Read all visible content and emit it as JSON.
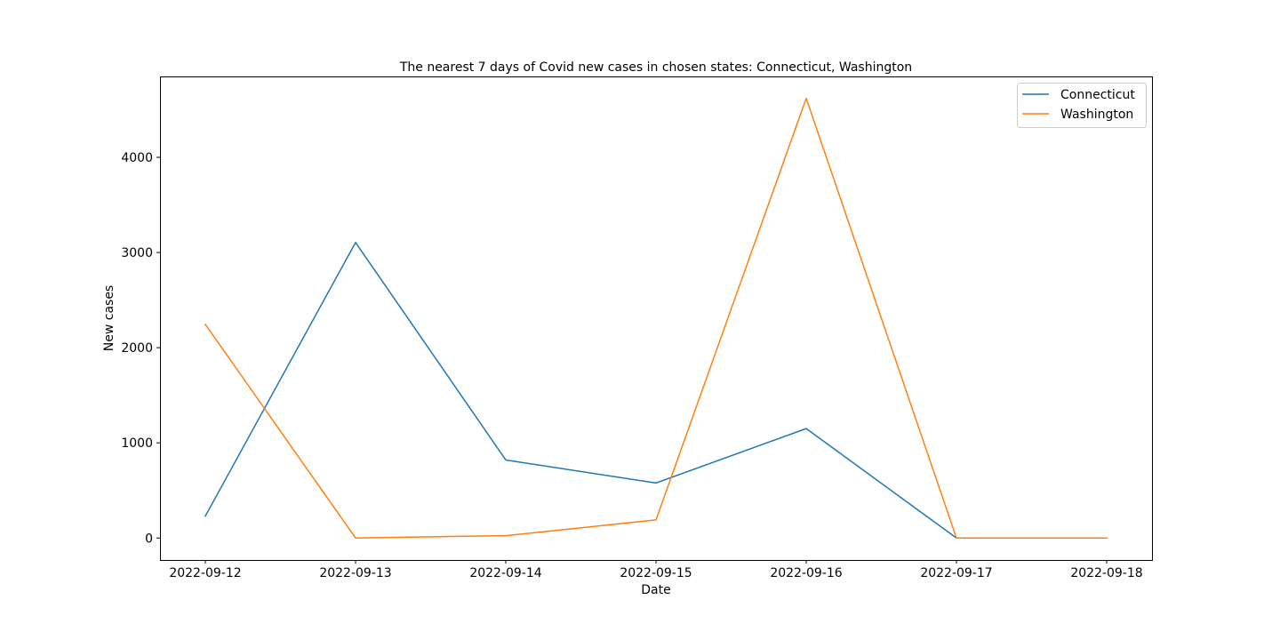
{
  "chart_data": {
    "type": "line",
    "title": "The nearest 7 days of Covid new cases in chosen states: Connecticut, Washington",
    "xlabel": "Date",
    "ylabel": "New cases",
    "x": [
      "2022-09-12",
      "2022-09-13",
      "2022-09-14",
      "2022-09-15",
      "2022-09-16",
      "2022-09-17",
      "2022-09-18"
    ],
    "yticks": [
      0,
      1000,
      2000,
      3000,
      4000
    ],
    "ytick_labels": [
      "0",
      "1000",
      "2000",
      "3000",
      "4000"
    ],
    "ylim": [
      -231,
      4850
    ],
    "grid": false,
    "legend_position": "top-right",
    "series": [
      {
        "name": "Connecticut",
        "color": "#1f77b4",
        "values": [
          230,
          3105,
          820,
          578,
          1150,
          0,
          0
        ]
      },
      {
        "name": "Washington",
        "color": "#ff7f0e",
        "values": [
          2245,
          0,
          25,
          190,
          4620,
          0,
          0
        ]
      }
    ]
  }
}
